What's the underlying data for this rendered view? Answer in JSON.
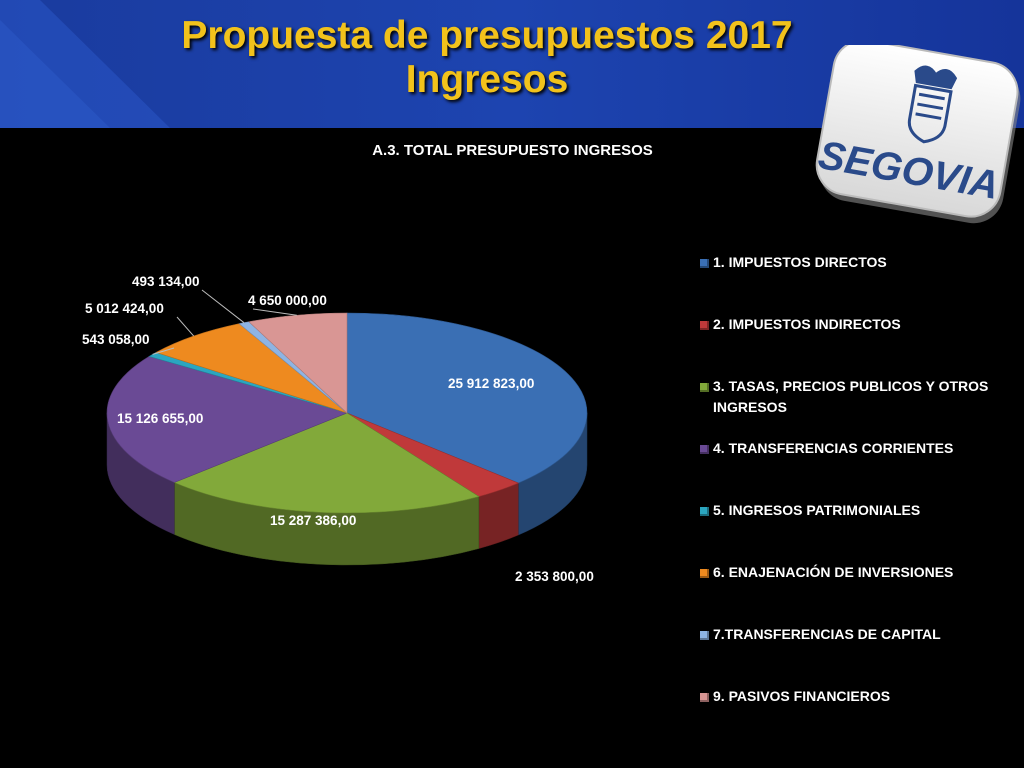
{
  "slide": {
    "title_line1": "Propuesta de presupuestos 2017",
    "title_line2": "Ingresos"
  },
  "logo": {
    "text": "SEGOVIA"
  },
  "chart_data": {
    "type": "pie",
    "title": "A.3. TOTAL PRESUPUESTO INGRESOS",
    "legend_position": "right",
    "slices": [
      {
        "name": "1. IMPUESTOS DIRECTOS",
        "value": 25912823.0,
        "label": "25 912 823,00",
        "color": "#3a6fb4"
      },
      {
        "name": "2. IMPUESTOS INDIRECTOS",
        "value": 2353800.0,
        "label": "2 353 800,00",
        "color": "#c0393a"
      },
      {
        "name": "3. TASAS, PRECIOS PUBLICOS Y OTROS INGRESOS",
        "value": 15287386.0,
        "label": "15 287 386,00",
        "color": "#82a93a"
      },
      {
        "name": "4. TRANSFERENCIAS CORRIENTES",
        "value": 15126655.0,
        "label": "15 126 655,00",
        "color": "#6a4a95"
      },
      {
        "name": "5. INGRESOS PATRIMONIALES",
        "value": 543058.0,
        "label": "543 058,00",
        "color": "#2ba6c0"
      },
      {
        "name": "6. ENAJENACIÓN DE INVERSIONES",
        "value": 5012424.0,
        "label": "5 012 424,00",
        "color": "#ee8a1f"
      },
      {
        "name": "7.TRANSFERENCIAS DE CAPITAL",
        "value": 493134.0,
        "label": "493 134,00",
        "color": "#8eb4e3"
      },
      {
        "name": "9. PASIVOS FINANCIEROS",
        "value": 4650000.0,
        "label": "4 650 000,00",
        "color": "#d99694"
      }
    ]
  }
}
